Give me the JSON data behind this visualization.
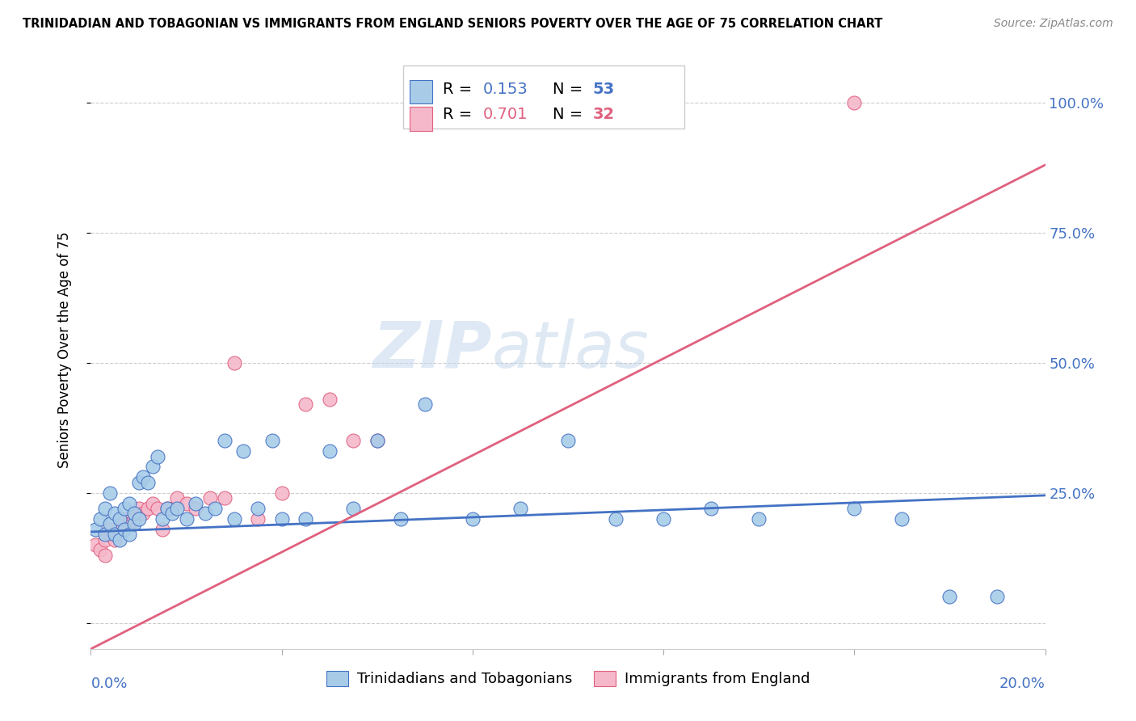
{
  "title": "TRINIDADIAN AND TOBAGONIAN VS IMMIGRANTS FROM ENGLAND SENIORS POVERTY OVER THE AGE OF 75 CORRELATION CHART",
  "source": "Source: ZipAtlas.com",
  "ylabel": "Seniors Poverty Over the Age of 75",
  "legend_blue_r": "0.153",
  "legend_blue_n": "53",
  "legend_pink_r": "0.701",
  "legend_pink_n": "32",
  "legend_blue_label": "Trinidadians and Tobagonians",
  "legend_pink_label": "Immigrants from England",
  "blue_color": "#a8cce8",
  "pink_color": "#f5b8cb",
  "blue_edge_color": "#4472c4",
  "pink_edge_color": "#e0607e",
  "blue_line_color": "#4472c4",
  "pink_line_color": "#e0607e",
  "watermark_zip": "ZIP",
  "watermark_atlas": "atlas",
  "y_ticks": [
    0.0,
    0.25,
    0.5,
    0.75,
    1.0
  ],
  "y_tick_labels": [
    "",
    "25.0%",
    "50.0%",
    "75.0%",
    "100.0%"
  ],
  "xlim": [
    0.0,
    0.2
  ],
  "ylim": [
    -0.05,
    1.1
  ],
  "blue_trend_x": [
    0.0,
    0.2
  ],
  "blue_trend_y": [
    0.175,
    0.245
  ],
  "pink_trend_x": [
    0.0,
    0.2
  ],
  "pink_trend_y": [
    -0.05,
    0.88
  ],
  "blue_scatter_x": [
    0.001,
    0.002,
    0.003,
    0.003,
    0.004,
    0.004,
    0.005,
    0.005,
    0.006,
    0.006,
    0.007,
    0.007,
    0.008,
    0.008,
    0.009,
    0.009,
    0.01,
    0.01,
    0.011,
    0.012,
    0.013,
    0.014,
    0.015,
    0.016,
    0.017,
    0.018,
    0.02,
    0.022,
    0.024,
    0.026,
    0.028,
    0.03,
    0.032,
    0.035,
    0.038,
    0.04,
    0.045,
    0.05,
    0.055,
    0.06,
    0.065,
    0.07,
    0.08,
    0.09,
    0.1,
    0.11,
    0.12,
    0.13,
    0.14,
    0.16,
    0.17,
    0.18,
    0.19
  ],
  "blue_scatter_y": [
    0.18,
    0.2,
    0.17,
    0.22,
    0.19,
    0.25,
    0.17,
    0.21,
    0.16,
    0.2,
    0.18,
    0.22,
    0.17,
    0.23,
    0.19,
    0.21,
    0.2,
    0.27,
    0.28,
    0.27,
    0.3,
    0.32,
    0.2,
    0.22,
    0.21,
    0.22,
    0.2,
    0.23,
    0.21,
    0.22,
    0.35,
    0.2,
    0.33,
    0.22,
    0.35,
    0.2,
    0.2,
    0.33,
    0.22,
    0.35,
    0.2,
    0.42,
    0.2,
    0.22,
    0.35,
    0.2,
    0.2,
    0.22,
    0.2,
    0.22,
    0.2,
    0.05,
    0.05
  ],
  "pink_scatter_x": [
    0.001,
    0.002,
    0.003,
    0.003,
    0.004,
    0.004,
    0.005,
    0.006,
    0.007,
    0.008,
    0.009,
    0.01,
    0.011,
    0.012,
    0.013,
    0.014,
    0.015,
    0.016,
    0.017,
    0.018,
    0.02,
    0.022,
    0.025,
    0.028,
    0.03,
    0.035,
    0.04,
    0.045,
    0.05,
    0.055,
    0.06,
    0.16
  ],
  "pink_scatter_y": [
    0.15,
    0.14,
    0.13,
    0.16,
    0.17,
    0.18,
    0.16,
    0.18,
    0.2,
    0.19,
    0.2,
    0.22,
    0.21,
    0.22,
    0.23,
    0.22,
    0.18,
    0.22,
    0.22,
    0.24,
    0.23,
    0.22,
    0.24,
    0.24,
    0.5,
    0.2,
    0.25,
    0.42,
    0.43,
    0.35,
    0.35,
    1.0
  ]
}
